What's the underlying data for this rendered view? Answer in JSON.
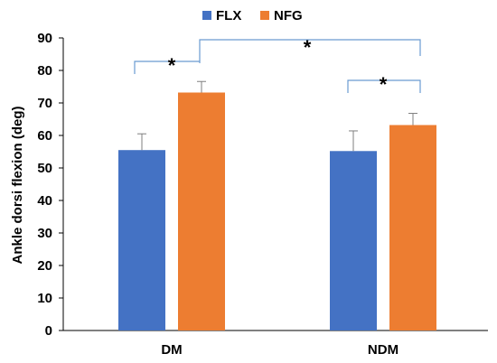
{
  "chart_data": {
    "type": "bar",
    "categories": [
      "DM",
      "NDM"
    ],
    "series": [
      {
        "name": "FLX",
        "color": "#4472C4",
        "values": [
          55.5,
          55.2
        ],
        "errors": [
          5.0,
          6.2
        ]
      },
      {
        "name": "NFG",
        "color": "#ED7D31",
        "values": [
          73.2,
          63.2
        ],
        "errors": [
          3.4,
          3.6
        ]
      }
    ],
    "ylabel": "Ankle dorsi flexion (deg)",
    "xlabel": "",
    "ylim": [
      0,
      90
    ],
    "yticks": [
      0,
      10,
      20,
      30,
      40,
      50,
      60,
      70,
      80,
      90
    ],
    "legend": "top",
    "grid": false,
    "significance": [
      {
        "label": "*",
        "between": [
          "DM FLX",
          "DM NFG"
        ]
      },
      {
        "label": "*",
        "between": [
          "DM NFG",
          "NDM NFG"
        ]
      },
      {
        "label": "*",
        "between": [
          "NDM FLX",
          "NDM NFG"
        ]
      }
    ],
    "bracket_color": "#6A9BD1"
  }
}
